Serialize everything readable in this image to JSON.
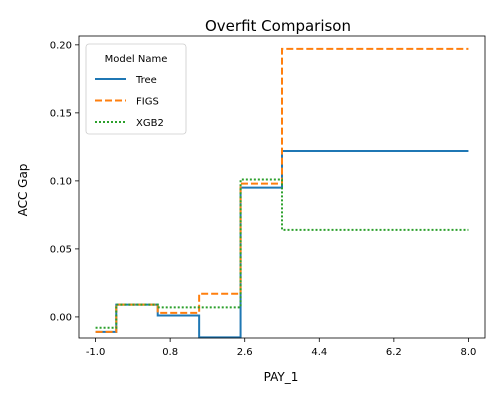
{
  "chart_data": {
    "type": "line",
    "title": "Overfit Comparison",
    "xlabel": "PAY_1",
    "ylabel": "ACC Gap",
    "xlim": [
      -1.4,
      8.4
    ],
    "ylim": [
      -0.0155,
      0.2065
    ],
    "xticks": [
      -1.0,
      0.8,
      2.6,
      4.4,
      6.2,
      8.0
    ],
    "xtick_labels": [
      "-1.0",
      "0.8",
      "2.6",
      "4.4",
      "6.2",
      "8.0"
    ],
    "yticks": [
      0.0,
      0.05,
      0.1,
      0.15,
      0.2
    ],
    "ytick_labels": [
      "0.00",
      "0.05",
      "0.10",
      "0.15",
      "0.20"
    ],
    "grid": false,
    "legend": {
      "title": "Model Name",
      "placement": "top-left",
      "entries": [
        "Tree",
        "FIGS",
        "XGB2"
      ]
    },
    "step": "post",
    "series": [
      {
        "name": "Tree",
        "color": "#1f77b4",
        "dash": "solid",
        "x": [
          -1.0,
          -0.5,
          0.5,
          1.5,
          2.5,
          3.5,
          8.0
        ],
        "y": [
          -0.011,
          0.009,
          0.001,
          -0.015,
          0.095,
          0.122,
          0.122
        ]
      },
      {
        "name": "FIGS",
        "color": "#ff7f0e",
        "dash": "dashed",
        "x": [
          -1.0,
          -0.5,
          0.5,
          1.5,
          2.5,
          3.5,
          8.0
        ],
        "y": [
          -0.011,
          0.009,
          0.003,
          0.017,
          0.098,
          0.197,
          0.197
        ]
      },
      {
        "name": "XGB2",
        "color": "#2ca02c",
        "dash": "dotted",
        "x": [
          -1.0,
          -0.5,
          0.5,
          1.5,
          2.5,
          3.5,
          8.0
        ],
        "y": [
          -0.008,
          0.009,
          0.007,
          0.007,
          0.101,
          0.064,
          0.064
        ]
      }
    ]
  }
}
